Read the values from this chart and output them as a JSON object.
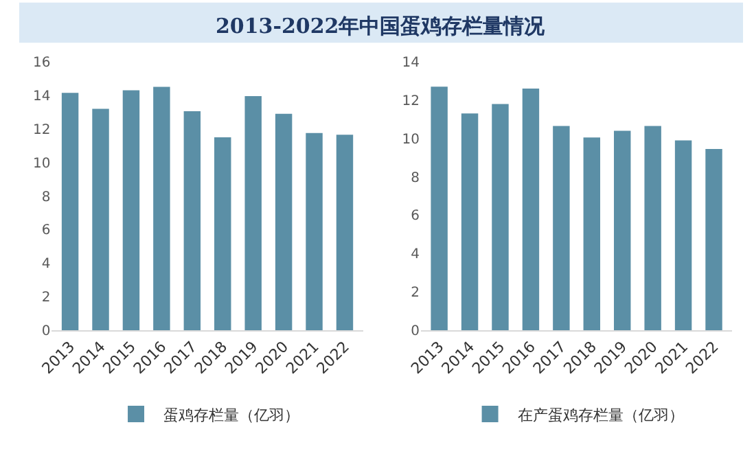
{
  "chart_data": [
    {
      "type": "bar",
      "title": "2013-2022年中国蛋鸡存栏量情况",
      "categories": [
        "2013",
        "2014",
        "2015",
        "2016",
        "2017",
        "2018",
        "2019",
        "2020",
        "2021",
        "2022"
      ],
      "series": [
        {
          "name": "蛋鸡存栏量（亿羽）",
          "color": "#5b8fa6",
          "values": [
            14.15,
            13.2,
            14.3,
            14.5,
            13.05,
            11.5,
            13.95,
            12.9,
            11.75,
            11.65
          ]
        }
      ],
      "ylim": [
        0,
        16
      ],
      "yticks": [
        0,
        2,
        4,
        6,
        8,
        10,
        12,
        14,
        16
      ],
      "grid": false,
      "legend": "bottom"
    },
    {
      "type": "bar",
      "categories": [
        "2013",
        "2014",
        "2015",
        "2016",
        "2017",
        "2018",
        "2019",
        "2020",
        "2021",
        "2022"
      ],
      "series": [
        {
          "name": "在产蛋鸡存栏量（亿羽）",
          "color": "#5b8fa6",
          "values": [
            12.7,
            11.3,
            11.8,
            12.6,
            10.65,
            10.05,
            10.4,
            10.65,
            9.9,
            9.45
          ]
        }
      ],
      "ylim": [
        0,
        14
      ],
      "yticks": [
        0,
        2,
        4,
        6,
        8,
        10,
        12,
        14
      ],
      "grid": false,
      "legend": "bottom"
    }
  ]
}
